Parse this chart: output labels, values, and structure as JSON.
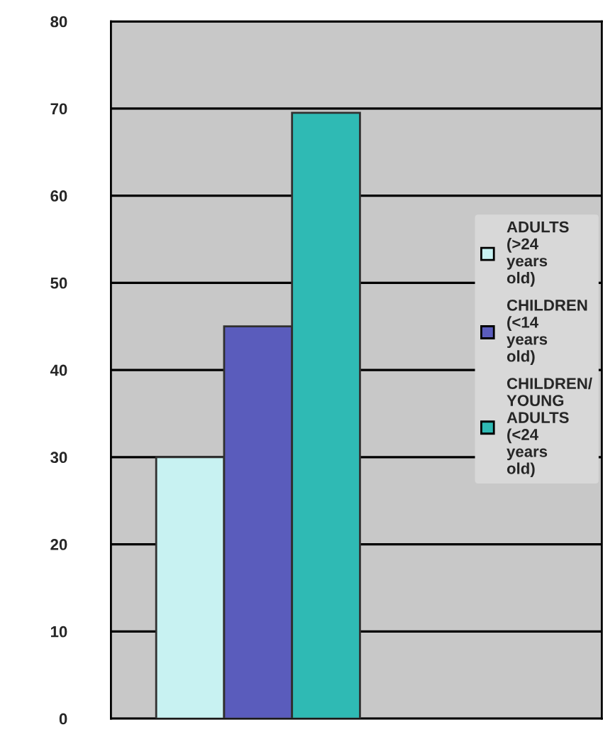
{
  "chart_data": {
    "type": "bar",
    "categories": [
      null
    ],
    "series": [
      {
        "name": "ADULTS (>24 years old)",
        "color": "#c8f2f2",
        "values": [
          30
        ]
      },
      {
        "name": "CHILDREN (<14 years old)",
        "color": "#5a5cbc",
        "values": [
          45
        ]
      },
      {
        "name": "CHILDREN/YOUNG ADULTS (<24 years old)",
        "color": "#2fbab4",
        "values": [
          69.5
        ]
      }
    ],
    "ylim": [
      0,
      80
    ],
    "yticks": [
      0,
      10,
      20,
      30,
      40,
      50,
      60,
      70,
      80
    ],
    "grid": "y",
    "legend": "right"
  }
}
